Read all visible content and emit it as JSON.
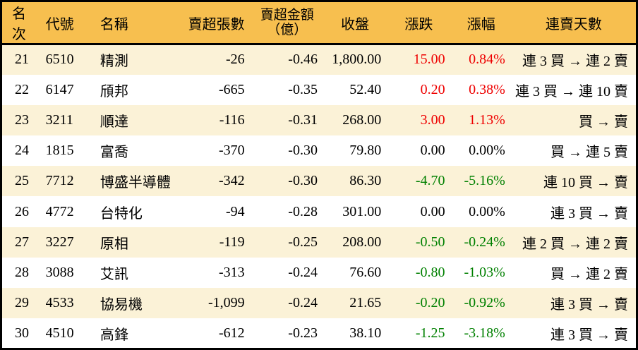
{
  "colors": {
    "header_bg": "#F7BF4F",
    "alt_row_bg": "#FBF2D7",
    "row_bg": "#FFFFFF",
    "up_red": "#EE0000",
    "down_green": "#008000",
    "text": "#000000",
    "border": "#000000"
  },
  "table": {
    "columns": [
      {
        "key": "rank",
        "label": "名次"
      },
      {
        "key": "code",
        "label": "代號"
      },
      {
        "key": "name",
        "label": "名稱"
      },
      {
        "key": "sell_volume",
        "label": "賣超張數"
      },
      {
        "key": "sell_amount",
        "label": "賣超金額",
        "label2": "（億）"
      },
      {
        "key": "close",
        "label": "收盤"
      },
      {
        "key": "change",
        "label": "漲跌"
      },
      {
        "key": "change_pct",
        "label": "漲幅"
      },
      {
        "key": "streak",
        "label": "連賣天數"
      }
    ],
    "rows": [
      {
        "rank": "21",
        "code": "6510",
        "name": "精測",
        "sell_volume": "-26",
        "sell_amount": "-0.46",
        "close": "1,800.00",
        "change": "15.00",
        "change_pct": "0.84%",
        "streak": "連 3 買 → 連 2 賣",
        "dir": "up"
      },
      {
        "rank": "22",
        "code": "6147",
        "name": "頎邦",
        "sell_volume": "-665",
        "sell_amount": "-0.35",
        "close": "52.40",
        "change": "0.20",
        "change_pct": "0.38%",
        "streak": "連 3 買 → 連 10 賣",
        "dir": "up"
      },
      {
        "rank": "23",
        "code": "3211",
        "name": "順達",
        "sell_volume": "-116",
        "sell_amount": "-0.31",
        "close": "268.00",
        "change": "3.00",
        "change_pct": "1.13%",
        "streak": "買 → 賣",
        "dir": "up"
      },
      {
        "rank": "24",
        "code": "1815",
        "name": "富喬",
        "sell_volume": "-370",
        "sell_amount": "-0.30",
        "close": "79.80",
        "change": "0.00",
        "change_pct": "0.00%",
        "streak": "買 → 連 5 賣",
        "dir": "flat"
      },
      {
        "rank": "25",
        "code": "7712",
        "name": "博盛半導體",
        "sell_volume": "-342",
        "sell_amount": "-0.30",
        "close": "86.30",
        "change": "-4.70",
        "change_pct": "-5.16%",
        "streak": "連 10 買 → 賣",
        "dir": "down"
      },
      {
        "rank": "26",
        "code": "4772",
        "name": "台特化",
        "sell_volume": "-94",
        "sell_amount": "-0.28",
        "close": "301.00",
        "change": "0.00",
        "change_pct": "0.00%",
        "streak": "連 3 買 → 賣",
        "dir": "flat"
      },
      {
        "rank": "27",
        "code": "3227",
        "name": "原相",
        "sell_volume": "-119",
        "sell_amount": "-0.25",
        "close": "208.00",
        "change": "-0.50",
        "change_pct": "-0.24%",
        "streak": "連 2 買 → 連 2 賣",
        "dir": "down"
      },
      {
        "rank": "28",
        "code": "3088",
        "name": "艾訊",
        "sell_volume": "-313",
        "sell_amount": "-0.24",
        "close": "76.60",
        "change": "-0.80",
        "change_pct": "-1.03%",
        "streak": "買 → 連 2 賣",
        "dir": "down"
      },
      {
        "rank": "29",
        "code": "4533",
        "name": "協易機",
        "sell_volume": "-1,099",
        "sell_amount": "-0.24",
        "close": "21.65",
        "change": "-0.20",
        "change_pct": "-0.92%",
        "streak": "連 3 買 → 賣",
        "dir": "down"
      },
      {
        "rank": "30",
        "code": "4510",
        "name": "高鋒",
        "sell_volume": "-612",
        "sell_amount": "-0.23",
        "close": "38.10",
        "change": "-1.25",
        "change_pct": "-3.18%",
        "streak": "連 3 買 → 賣",
        "dir": "down"
      }
    ]
  },
  "chart_data": {
    "type": "table",
    "title": "",
    "columns": [
      "名次",
      "代號",
      "名稱",
      "賣超張數",
      "賣超金額（億）",
      "收盤",
      "漲跌",
      "漲幅",
      "連賣天數"
    ],
    "rows": [
      [
        21,
        "6510",
        "精測",
        -26,
        -0.46,
        1800.0,
        15.0,
        "0.84%",
        "連 3 買 → 連 2 賣"
      ],
      [
        22,
        "6147",
        "頎邦",
        -665,
        -0.35,
        52.4,
        0.2,
        "0.38%",
        "連 3 買 → 連 10 賣"
      ],
      [
        23,
        "3211",
        "順達",
        -116,
        -0.31,
        268.0,
        3.0,
        "1.13%",
        "買 → 賣"
      ],
      [
        24,
        "1815",
        "富喬",
        -370,
        -0.3,
        79.8,
        0.0,
        "0.00%",
        "買 → 連 5 賣"
      ],
      [
        25,
        "7712",
        "博盛半導體",
        -342,
        -0.3,
        86.3,
        -4.7,
        "-5.16%",
        "連 10 買 → 賣"
      ],
      [
        26,
        "4772",
        "台特化",
        -94,
        -0.28,
        301.0,
        0.0,
        "0.00%",
        "連 3 買 → 賣"
      ],
      [
        27,
        "3227",
        "原相",
        -119,
        -0.25,
        208.0,
        -0.5,
        "-0.24%",
        "連 2 買 → 連 2 賣"
      ],
      [
        28,
        "3088",
        "艾訊",
        -313,
        -0.24,
        76.6,
        -0.8,
        "-1.03%",
        "買 → 連 2 賣"
      ],
      [
        29,
        "4533",
        "協易機",
        -1099,
        -0.24,
        21.65,
        -0.2,
        "-0.92%",
        "連 3 買 → 賣"
      ],
      [
        30,
        "4510",
        "高鋒",
        -612,
        -0.23,
        38.1,
        -1.25,
        "-3.18%",
        "連 3 買 → 賣"
      ]
    ]
  }
}
